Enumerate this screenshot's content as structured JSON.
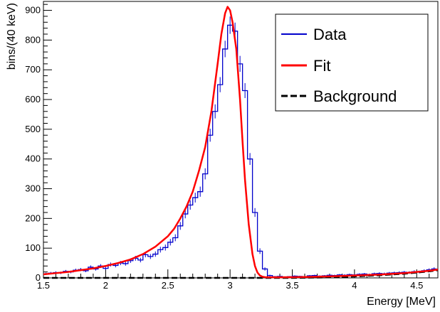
{
  "chart_data": {
    "type": "line",
    "title": "",
    "xlabel": "Energy [MeV]",
    "ylabel": "bins/(40 keV)",
    "xlim": [
      1.5,
      4.67
    ],
    "ylim": [
      0,
      930
    ],
    "x_ticks": [
      "1.5",
      "2",
      "2.5",
      "3",
      "3.5",
      "4",
      "4.5"
    ],
    "y_ticks": [
      "0",
      "100",
      "200",
      "300",
      "400",
      "500",
      "600",
      "700",
      "800",
      "900"
    ],
    "grid": false,
    "legend_position": "top-right",
    "legend": [
      {
        "label": "Data",
        "color": "#0000cc",
        "style": "solid"
      },
      {
        "label": "Fit",
        "color": "#ff0000",
        "style": "solid"
      },
      {
        "label": "Background",
        "color": "#000000",
        "style": "dashed"
      }
    ],
    "series": [
      {
        "name": "Data",
        "kind": "histogram",
        "bin_width": 0.04,
        "color": "#0000cc",
        "x": [
          1.5,
          1.54,
          1.58,
          1.62,
          1.66,
          1.7,
          1.74,
          1.78,
          1.82,
          1.86,
          1.9,
          1.94,
          1.98,
          2.02,
          2.06,
          2.1,
          2.14,
          2.18,
          2.22,
          2.26,
          2.3,
          2.34,
          2.38,
          2.42,
          2.46,
          2.5,
          2.54,
          2.58,
          2.62,
          2.66,
          2.7,
          2.74,
          2.78,
          2.82,
          2.86,
          2.9,
          2.94,
          2.98,
          3.02,
          3.06,
          3.1,
          3.14,
          3.18,
          3.22,
          3.26,
          3.3,
          3.34,
          3.38,
          3.42,
          3.46,
          3.5,
          3.54,
          3.58,
          3.62,
          3.66,
          3.7,
          3.74,
          3.78,
          3.82,
          3.86,
          3.9,
          3.94,
          3.98,
          4.02,
          4.06,
          4.1,
          4.14,
          4.18,
          4.22,
          4.26,
          4.3,
          4.34,
          4.38,
          4.42,
          4.46,
          4.5,
          4.54,
          4.58,
          4.62
        ],
        "values": [
          14,
          16,
          18,
          17,
          22,
          20,
          26,
          28,
          24,
          36,
          30,
          40,
          32,
          45,
          42,
          50,
          48,
          58,
          66,
          60,
          78,
          72,
          80,
          95,
          102,
          120,
          135,
          175,
          215,
          245,
          270,
          290,
          350,
          480,
          560,
          650,
          770,
          850,
          830,
          720,
          630,
          400,
          220,
          90,
          30,
          8,
          4,
          5,
          3,
          4,
          6,
          5,
          4,
          7,
          8,
          6,
          7,
          9,
          8,
          10,
          9,
          11,
          10,
          12,
          13,
          11,
          14,
          15,
          14,
          16,
          17,
          18,
          19,
          18,
          21,
          20,
          24,
          27,
          30
        ]
      },
      {
        "name": "Fit",
        "kind": "curve",
        "color": "#ff0000",
        "x": [
          1.5,
          1.6,
          1.7,
          1.8,
          1.9,
          2.0,
          2.1,
          2.2,
          2.3,
          2.4,
          2.5,
          2.55,
          2.6,
          2.65,
          2.7,
          2.75,
          2.8,
          2.85,
          2.9,
          2.93,
          2.96,
          2.98,
          3.0,
          3.02,
          3.05,
          3.08,
          3.1,
          3.12,
          3.15,
          3.18,
          3.2,
          3.22,
          3.24,
          3.26,
          3.28,
          3.3,
          3.35,
          3.4,
          3.5,
          3.6,
          3.8,
          4.0,
          4.2,
          4.4,
          4.6,
          4.67
        ],
        "values": [
          12,
          16,
          20,
          26,
          32,
          40,
          50,
          62,
          80,
          105,
          140,
          165,
          200,
          240,
          290,
          360,
          440,
          560,
          720,
          820,
          890,
          912,
          900,
          860,
          770,
          600,
          460,
          330,
          180,
          80,
          40,
          18,
          8,
          4,
          2.5,
          2,
          2,
          2,
          2.5,
          3,
          5,
          8,
          11,
          16,
          24,
          28
        ]
      },
      {
        "name": "Background",
        "kind": "curve",
        "color": "#000000",
        "x": [
          1.5,
          2.0,
          2.5,
          3.0,
          3.5,
          3.8,
          4.0,
          4.2,
          4.4,
          4.6,
          4.67
        ],
        "values": [
          0,
          0,
          0,
          0,
          0,
          2,
          5,
          9,
          14,
          22,
          26
        ]
      }
    ]
  }
}
